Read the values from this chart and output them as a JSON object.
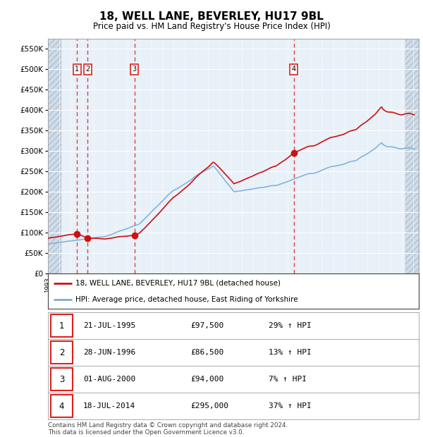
{
  "title": "18, WELL LANE, BEVERLEY, HU17 9BL",
  "subtitle": "Price paid vs. HM Land Registry's House Price Index (HPI)",
  "footer": "Contains HM Land Registry data © Crown copyright and database right 2024.\nThis data is licensed under the Open Government Licence v3.0.",
  "legend_line1": "18, WELL LANE, BEVERLEY, HU17 9BL (detached house)",
  "legend_line2": "HPI: Average price, detached house, East Riding of Yorkshire",
  "sales": [
    {
      "label": "1",
      "date": "21-JUL-1995",
      "price": 97500,
      "pct": "29%",
      "x_year": 1995.55
    },
    {
      "label": "2",
      "date": "28-JUN-1996",
      "price": 86500,
      "pct": "13%",
      "x_year": 1996.49
    },
    {
      "label": "3",
      "date": "01-AUG-2000",
      "price": 94000,
      "pct": "7%",
      "x_year": 2000.58
    },
    {
      "label": "4",
      "date": "18-JUL-2014",
      "price": 295000,
      "pct": "37%",
      "x_year": 2014.54
    }
  ],
  "table_rows": [
    [
      "1",
      "21-JUL-1995",
      "£97,500",
      "29% ↑ HPI"
    ],
    [
      "2",
      "28-JUN-1996",
      "£86,500",
      "13% ↑ HPI"
    ],
    [
      "3",
      "01-AUG-2000",
      "£94,000",
      "7% ↑ HPI"
    ],
    [
      "4",
      "18-JUL-2014",
      "£295,000",
      "37% ↑ HPI"
    ]
  ],
  "hpi_color": "#7aaddc",
  "price_color": "#cc1111",
  "dashed_color": "#dd2222",
  "ylim": [
    0,
    575000
  ],
  "yticks": [
    0,
    50000,
    100000,
    150000,
    200000,
    250000,
    300000,
    350000,
    400000,
    450000,
    500000,
    550000
  ],
  "xlim_start": 1993.0,
  "xlim_end": 2025.5
}
